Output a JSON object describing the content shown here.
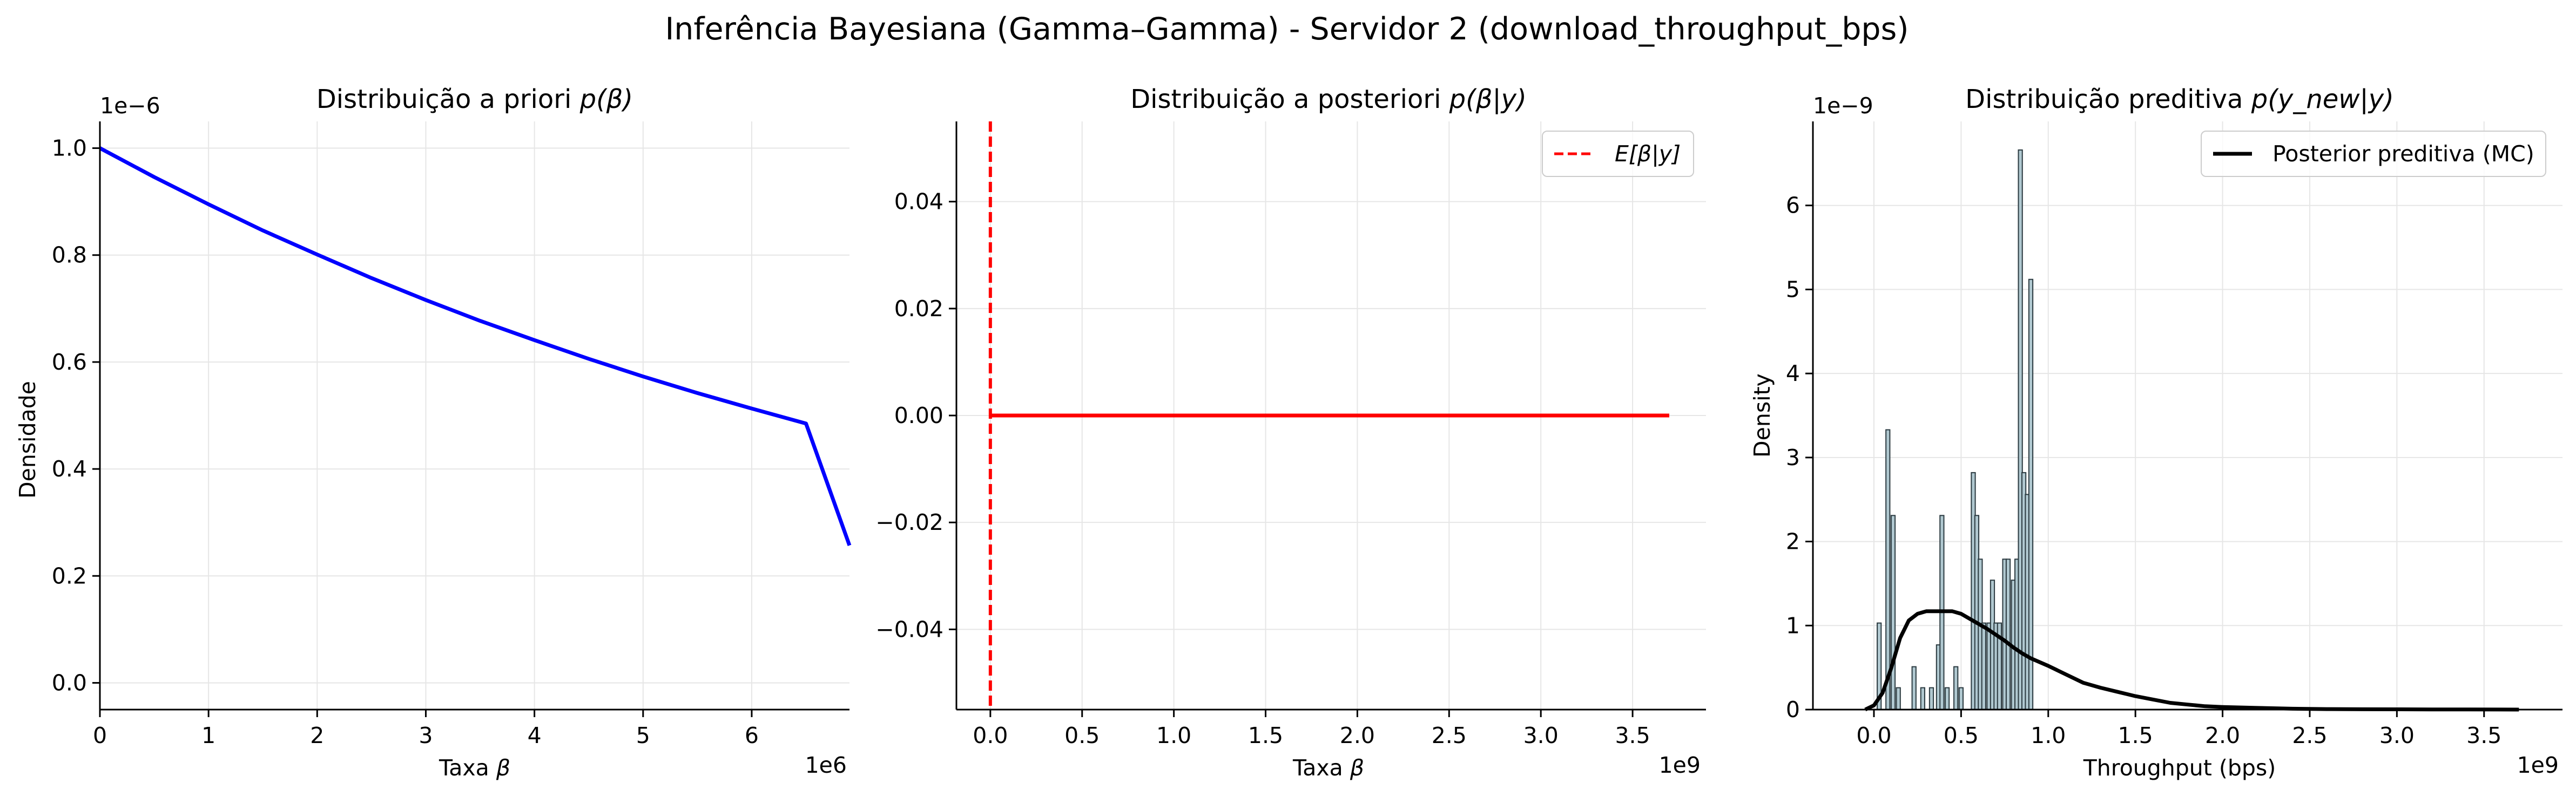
{
  "suptitle": "Inferência Bayesiana (Gamma–Gamma) - Servidor 2 (download_throughput_bps)",
  "colors": {
    "prior_line": "#0000ff",
    "posterior_line": "#ff0000",
    "posterior_mean": "#ff0000",
    "predictive_line": "#000000",
    "hist_fill": "#b0c8d0",
    "hist_edge": "#2b3a40",
    "grid": "#e6e6e6"
  },
  "chart_data": [
    {
      "type": "line",
      "title_prefix": "Distribuição a priori ",
      "title_math": "p(β)",
      "xlabel_prefix": "Taxa ",
      "xlabel_math": "β",
      "ylabel": "Densidade",
      "x_offset_text": "1e6",
      "y_offset_text": "1e−6",
      "xlim": [
        0,
        6.9
      ],
      "ylim": [
        -0.05,
        1.05
      ],
      "xticks": [
        0,
        1,
        2,
        3,
        4,
        5,
        6
      ],
      "xtick_labels": [
        "0",
        "1",
        "2",
        "3",
        "4",
        "5",
        "6"
      ],
      "yticks": [
        0.0,
        0.2,
        0.4,
        0.6,
        0.8,
        1.0
      ],
      "ytick_labels": [
        "0.0",
        "0.2",
        "0.4",
        "0.6",
        "0.8",
        "1.0"
      ],
      "series": [
        {
          "x": [
            0,
            0.5,
            1,
            1.5,
            2,
            2.5,
            3,
            3.5,
            4,
            4.5,
            5,
            5.5,
            6,
            6.5,
            6.9
          ],
          "y": [
            1.0,
            0.946,
            0.895,
            0.846,
            0.801,
            0.757,
            0.716,
            0.677,
            0.641,
            0.606,
            0.573,
            0.542,
            0.513,
            0.485,
            0.257
          ]
        }
      ]
    },
    {
      "type": "line",
      "title_prefix": "Distribuição a posteriori ",
      "title_math": "p(β|y)",
      "xlabel_prefix": "Taxa ",
      "xlabel_math": "β",
      "x_offset_text": "1e9",
      "xlim": [
        -0.185,
        3.9
      ],
      "ylim": [
        -0.055,
        0.055
      ],
      "xticks": [
        0,
        0.5,
        1,
        1.5,
        2,
        2.5,
        3,
        3.5
      ],
      "xtick_labels": [
        "0.0",
        "0.5",
        "1.0",
        "1.5",
        "2.0",
        "2.5",
        "3.0",
        "3.5"
      ],
      "yticks": [
        -0.04,
        -0.02,
        0.0,
        0.02,
        0.04
      ],
      "ytick_labels": [
        "−0.04",
        "−0.02",
        "0.00",
        "0.02",
        "0.04"
      ],
      "series": [
        {
          "x": [
            0.0,
            3.7
          ],
          "y": [
            0.0,
            0.0
          ]
        }
      ],
      "vline_x": 0.0,
      "legend": {
        "label": "E[β|y]",
        "placement": "upper right"
      }
    },
    {
      "type": "histogram+line",
      "title_prefix": "Distribuição preditiva ",
      "title_math": "p(y_new|y)",
      "xlabel": "Throughput (bps)",
      "ylabel": "Density",
      "x_offset_text": "1e9",
      "y_offset_text": "1e−9",
      "xlim": [
        -0.35,
        3.95
      ],
      "ylim": [
        0,
        7.0
      ],
      "xticks": [
        0,
        0.5,
        1,
        1.5,
        2,
        2.5,
        3,
        3.5
      ],
      "xtick_labels": [
        "0.0",
        "0.5",
        "1.0",
        "1.5",
        "2.0",
        "2.5",
        "3.0",
        "3.5"
      ],
      "yticks": [
        0,
        1,
        2,
        3,
        4,
        5,
        6
      ],
      "ytick_labels": [
        "0",
        "1",
        "2",
        "3",
        "4",
        "5",
        "6"
      ],
      "histogram": {
        "bin_width": 0.0225,
        "bins": [
          [
            0.03,
            1.03
          ],
          [
            0.08,
            3.33
          ],
          [
            0.11,
            2.31
          ],
          [
            0.14,
            0.26
          ],
          [
            0.23,
            0.51
          ],
          [
            0.28,
            0.26
          ],
          [
            0.33,
            0.26
          ],
          [
            0.37,
            0.77
          ],
          [
            0.39,
            2.31
          ],
          [
            0.42,
            0.26
          ],
          [
            0.47,
            0.51
          ],
          [
            0.5,
            0.26
          ],
          [
            0.57,
            2.82
          ],
          [
            0.59,
            2.31
          ],
          [
            0.61,
            1.79
          ],
          [
            0.63,
            1.03
          ],
          [
            0.66,
            1.03
          ],
          [
            0.68,
            1.54
          ],
          [
            0.7,
            1.03
          ],
          [
            0.72,
            1.03
          ],
          [
            0.75,
            1.79
          ],
          [
            0.77,
            1.79
          ],
          [
            0.8,
            1.54
          ],
          [
            0.82,
            1.79
          ],
          [
            0.84,
            6.66
          ],
          [
            0.86,
            2.82
          ],
          [
            0.88,
            2.56
          ],
          [
            0.9,
            5.12
          ]
        ]
      },
      "series": [
        {
          "name": "Posterior preditiva (MC)",
          "x": [
            -0.05,
            0.0,
            0.05,
            0.1,
            0.15,
            0.2,
            0.25,
            0.3,
            0.35,
            0.4,
            0.45,
            0.5,
            0.55,
            0.6,
            0.65,
            0.7,
            0.75,
            0.8,
            0.85,
            0.9,
            1.0,
            1.1,
            1.2,
            1.3,
            1.4,
            1.5,
            1.6,
            1.7,
            1.8,
            1.9,
            2.0,
            2.2,
            2.4,
            2.6,
            2.8,
            3.0,
            3.2,
            3.4,
            3.6,
            3.7
          ],
          "y": [
            0.0,
            0.05,
            0.2,
            0.5,
            0.85,
            1.06,
            1.14,
            1.17,
            1.17,
            1.17,
            1.17,
            1.14,
            1.08,
            1.02,
            0.96,
            0.89,
            0.82,
            0.74,
            0.67,
            0.61,
            0.52,
            0.42,
            0.32,
            0.26,
            0.21,
            0.16,
            0.12,
            0.08,
            0.06,
            0.04,
            0.03,
            0.02,
            0.01,
            0.006,
            0.004,
            0.003,
            0.002,
            0.001,
            0.0005,
            0.0
          ]
        }
      ],
      "legend": {
        "label": "Posterior preditiva (MC)",
        "placement": "upper right"
      }
    }
  ]
}
